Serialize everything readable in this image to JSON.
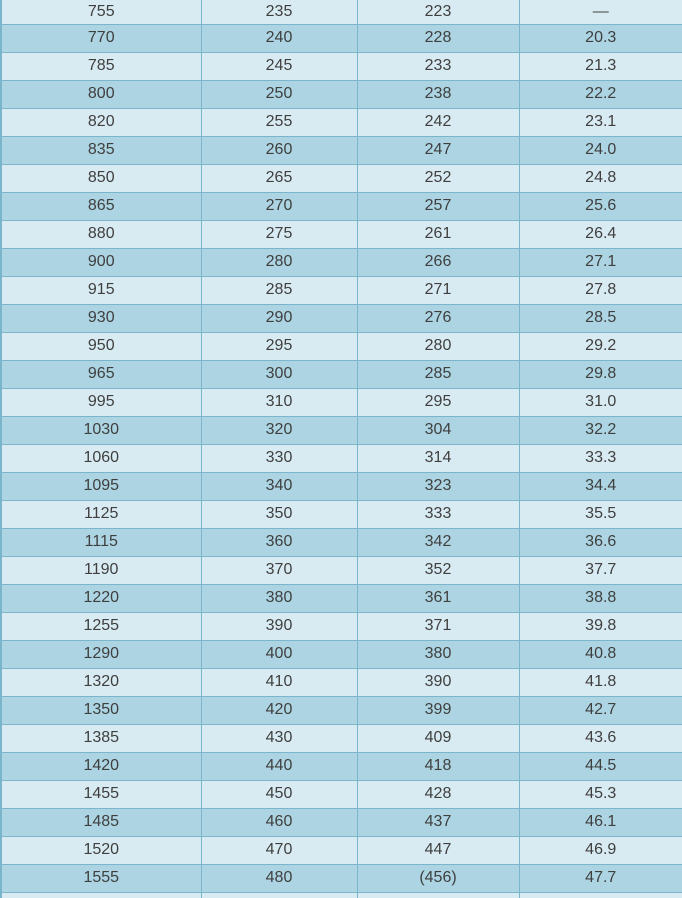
{
  "colors": {
    "row_light": "#d9ebf2",
    "row_dark": "#acd4e2",
    "border": "#7ab5cc",
    "text": "#3f3f3f"
  },
  "table": {
    "column_count": 4,
    "rows": [
      [
        "755",
        "235",
        "223",
        "—"
      ],
      [
        "770",
        "240",
        "228",
        "20.3"
      ],
      [
        "785",
        "245",
        "233",
        "21.3"
      ],
      [
        "800",
        "250",
        "238",
        "22.2"
      ],
      [
        "820",
        "255",
        "242",
        "23.1"
      ],
      [
        "835",
        "260",
        "247",
        "24.0"
      ],
      [
        "850",
        "265",
        "252",
        "24.8"
      ],
      [
        "865",
        "270",
        "257",
        "25.6"
      ],
      [
        "880",
        "275",
        "261",
        "26.4"
      ],
      [
        "900",
        "280",
        "266",
        "27.1"
      ],
      [
        "915",
        "285",
        "271",
        "27.8"
      ],
      [
        "930",
        "290",
        "276",
        "28.5"
      ],
      [
        "950",
        "295",
        "280",
        "29.2"
      ],
      [
        "965",
        "300",
        "285",
        "29.8"
      ],
      [
        "995",
        "310",
        "295",
        "31.0"
      ],
      [
        "1030",
        "320",
        "304",
        "32.2"
      ],
      [
        "1060",
        "330",
        "314",
        "33.3"
      ],
      [
        "1095",
        "340",
        "323",
        "34.4"
      ],
      [
        "1125",
        "350",
        "333",
        "35.5"
      ],
      [
        "1115",
        "360",
        "342",
        "36.6"
      ],
      [
        "1190",
        "370",
        "352",
        "37.7"
      ],
      [
        "1220",
        "380",
        "361",
        "38.8"
      ],
      [
        "1255",
        "390",
        "371",
        "39.8"
      ],
      [
        "1290",
        "400",
        "380",
        "40.8"
      ],
      [
        "1320",
        "410",
        "390",
        "41.8"
      ],
      [
        "1350",
        "420",
        "399",
        "42.7"
      ],
      [
        "1385",
        "430",
        "409",
        "43.6"
      ],
      [
        "1420",
        "440",
        "418",
        "44.5"
      ],
      [
        "1455",
        "450",
        "428",
        "45.3"
      ],
      [
        "1485",
        "460",
        "437",
        "46.1"
      ],
      [
        "1520",
        "470",
        "447",
        "46.9"
      ],
      [
        "1555",
        "480",
        "(456)",
        "47.7"
      ]
    ]
  }
}
